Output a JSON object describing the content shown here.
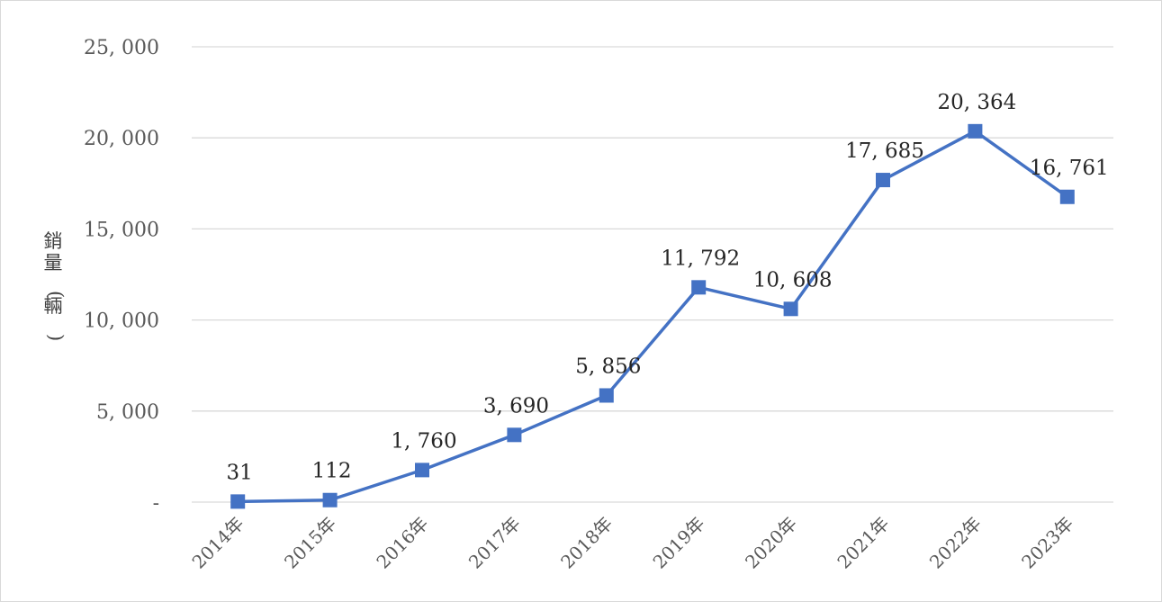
{
  "chart_data": {
    "type": "line",
    "title": "",
    "xlabel": "",
    "ylabel": "銷量(輛)",
    "categories": [
      "2014年",
      "2015年",
      "2016年",
      "2017年",
      "2018年",
      "2019年",
      "2020年",
      "2021年",
      "2022年",
      "2023年"
    ],
    "series": [
      {
        "values": [
          31,
          112,
          1760,
          3690,
          5856,
          11792,
          10608,
          17685,
          20364,
          16761
        ]
      }
    ],
    "data_labels": [
      "31",
      "112",
      "1, 760",
      "3, 690",
      "5, 856",
      "11, 792",
      "10, 608",
      "17, 685",
      "20, 364",
      "16, 761"
    ],
    "yticks": [
      0,
      5000,
      10000,
      15000,
      20000,
      25000
    ],
    "ytick_labels": [
      "-",
      "5, 000",
      "10, 000",
      "15, 000",
      "20, 000",
      "25, 000"
    ],
    "ylim": [
      0,
      25000
    ],
    "grid": true,
    "legend": "none",
    "color": "#4472c4"
  }
}
